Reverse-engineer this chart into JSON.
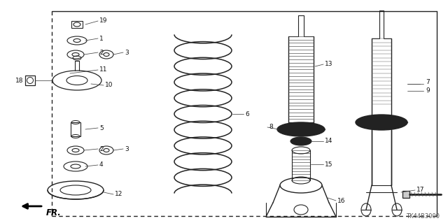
{
  "background_color": "#ffffff",
  "diagram_code": "TK44B3000",
  "fr_label": "FR.",
  "line_color": "#222222",
  "label_color": "#111111",
  "font_size_label": 6.5,
  "font_size_code": 6,
  "border": [
    0.115,
    0.05,
    0.975,
    0.97
  ],
  "figsize": [
    6.4,
    3.19
  ],
  "dpi": 100
}
